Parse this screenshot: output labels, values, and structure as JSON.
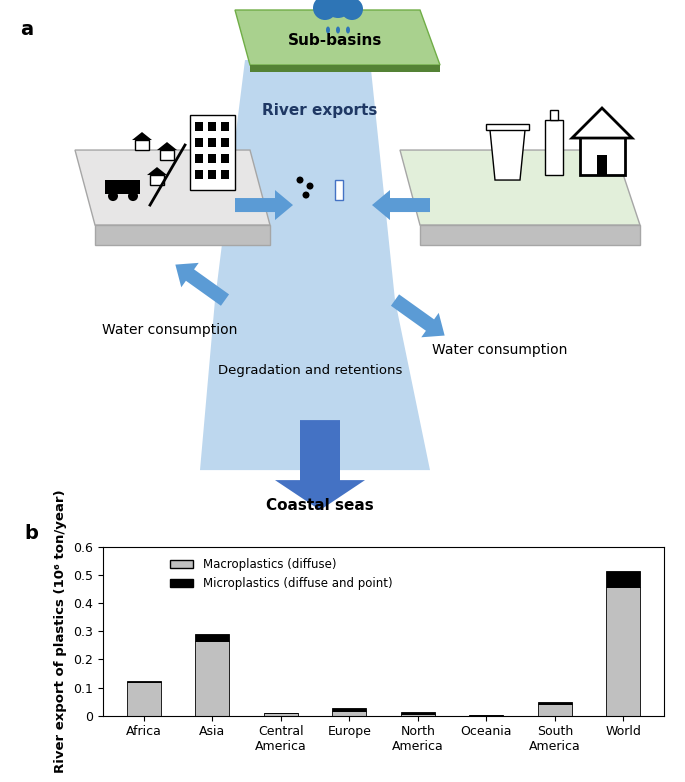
{
  "diagram": {
    "label": "a",
    "top": "Sub-basins",
    "river": "River exports",
    "left_flow": "Water consumption",
    "right_flow": "Water consumption",
    "process": "Degradation and retentions",
    "outlet": "Coastal seas"
  },
  "chart_data": {
    "type": "bar",
    "stacked": true,
    "title": "b",
    "categories": [
      "Africa",
      "Asia",
      "Central America",
      "Europe",
      "North America",
      "Oceania",
      "South America",
      "World"
    ],
    "series": [
      {
        "name": "Macroplastics (diffuse)",
        "color": "#c0c0c0",
        "values": [
          0.12,
          0.265,
          0.008,
          0.015,
          0.004,
          0.002,
          0.04,
          0.46
        ]
      },
      {
        "name": "Microplastics (diffuse and point)",
        "color": "#000000",
        "values": [
          0.003,
          0.025,
          0.001,
          0.012,
          0.007,
          0.001,
          0.007,
          0.056
        ]
      }
    ],
    "y_label": "River export of plastics (10⁶ ton/year)",
    "ylim": [
      0,
      0.6
    ],
    "yticks": [
      0,
      0.1,
      0.2,
      0.3,
      0.4,
      0.5,
      0.6
    ],
    "legend": "upper left"
  }
}
